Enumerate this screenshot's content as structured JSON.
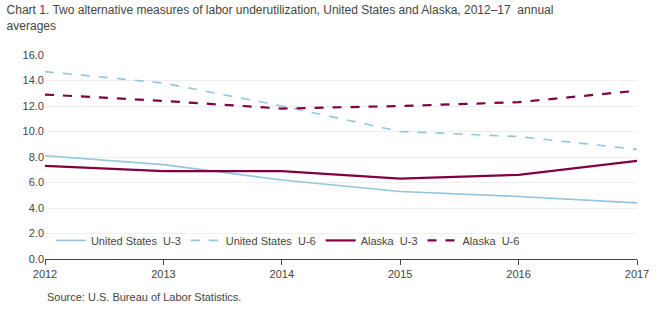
{
  "chart_data": {
    "type": "line",
    "title": "Chart 1. Two alternative measures of labor underutilization, United States and Alaska, 2012–17  annual\naverages",
    "annotations": [
      "Source: U.S. Bureau of Labor Statistics."
    ],
    "x": [
      2012,
      2013,
      2014,
      2015,
      2016,
      2017
    ],
    "series": [
      {
        "name": "United States  U-3",
        "color": "#92c5de",
        "line_style": "solid",
        "values": [
          8.1,
          7.4,
          6.2,
          5.3,
          4.9,
          4.4
        ]
      },
      {
        "name": "United States  U-6",
        "color": "#92c5de",
        "line_style": "dashed",
        "values": [
          14.7,
          13.8,
          12.0,
          10.0,
          9.6,
          8.6
        ]
      },
      {
        "name": "Alaska  U-3",
        "color": "#800040",
        "line_style": "solid",
        "values": [
          7.3,
          6.9,
          6.9,
          6.3,
          6.6,
          7.7
        ]
      },
      {
        "name": "Alaska  U-6",
        "color": "#800040",
        "line_style": "dashed",
        "values": [
          12.9,
          12.4,
          11.8,
          12.0,
          12.3,
          13.2
        ]
      }
    ],
    "xlim": [
      2012,
      2017
    ],
    "xticks": [
      2012,
      2013,
      2014,
      2015,
      2016,
      2017
    ],
    "ylim": [
      0.0,
      16.0
    ],
    "yticks": [
      {
        "value": 0.0,
        "label": "0.0"
      },
      {
        "value": 2.0,
        "label": "2.0"
      },
      {
        "value": 4.0,
        "label": "4.0"
      },
      {
        "value": 6.0,
        "label": "6.0"
      },
      {
        "value": 8.0,
        "label": "8.0"
      },
      {
        "value": 10.0,
        "label": "10.0"
      },
      {
        "value": 12.0,
        "label": "12.0"
      },
      {
        "value": 14.0,
        "label": "14.0"
      },
      {
        "value": 16.0,
        "label": "16.0"
      }
    ],
    "grid": true,
    "legend": "lower left"
  }
}
